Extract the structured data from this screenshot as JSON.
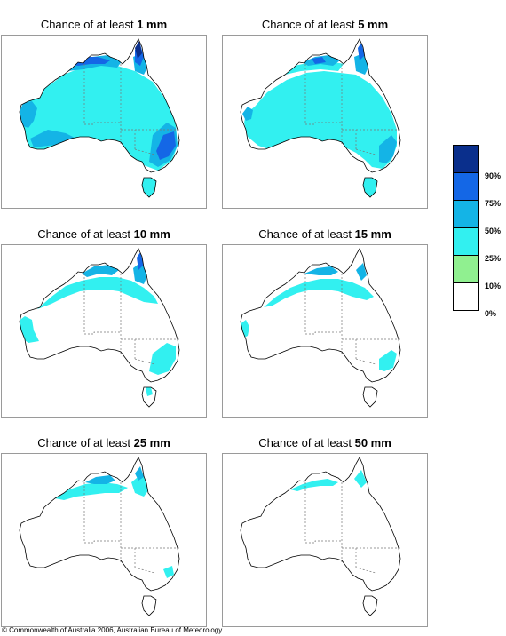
{
  "panels": [
    {
      "prefix": "Chance of at least ",
      "amount": "1 mm",
      "level": 6
    },
    {
      "prefix": "Chance of at least ",
      "amount": "5 mm",
      "level": 5
    },
    {
      "prefix": "Chance of at least ",
      "amount": "10 mm",
      "level": 4
    },
    {
      "prefix": "Chance of at least ",
      "amount": "15 mm",
      "level": 3
    },
    {
      "prefix": "Chance of at least ",
      "amount": "25 mm",
      "level": 2
    },
    {
      "prefix": "Chance of at least ",
      "amount": "50 mm",
      "level": 1
    }
  ],
  "legend": {
    "labels": [
      "90%",
      "75%",
      "50%",
      "25%",
      "10%",
      "0%"
    ],
    "colors": [
      "#0a2f8c",
      "#1467e6",
      "#14b4e6",
      "#32f0f0",
      "#90f090",
      "#ffffff"
    ]
  },
  "footer": "© Commonwealth of Australia 2006, Australian Bureau of Meteorology"
}
